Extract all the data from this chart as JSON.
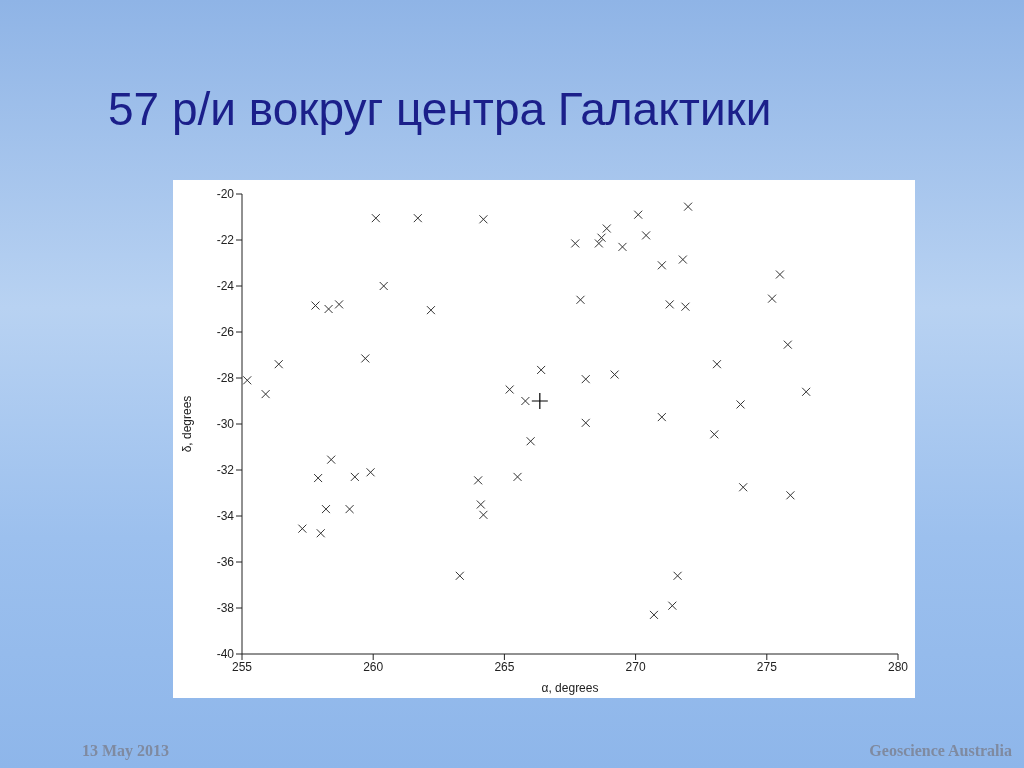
{
  "chart_data": {
    "type": "scatter",
    "title": "57 р/и вокруг центра Галактики",
    "xlabel": "α, degrees",
    "ylabel": "δ, degrees",
    "xlim": [
      255,
      280
    ],
    "xticks": [
      255,
      260,
      265,
      270,
      275,
      280
    ],
    "ylim": [
      -40,
      -20
    ],
    "yticks": [
      -40,
      -38,
      -36,
      -34,
      -32,
      -30,
      -28,
      -26,
      -24,
      -22,
      -20
    ],
    "grid": false,
    "legend": false,
    "annotations": [
      "13 May 2013",
      "Geoscience Australia"
    ],
    "series": [
      {
        "color": "#333333",
        "marker": "cross",
        "x": [
          255.2,
          255.9,
          256.4,
          257.8,
          258.3,
          258.7,
          259.7,
          260.1,
          260.4,
          261.7,
          262.2,
          264.2,
          265.2,
          265.8,
          266.4,
          267.7,
          267.9,
          268.6,
          268.7,
          268.9,
          269.5,
          270.1,
          270.4,
          271.0,
          271.3,
          271.8,
          272.0,
          271.9,
          275.5,
          275.2,
          275.8,
          273.1,
          268.1,
          269.2,
          276.5,
          274.0,
          271.0,
          268.1,
          273.0,
          274.1,
          275.9,
          271.6,
          271.4,
          270.7,
          257.3,
          257.9,
          258.4,
          258.0,
          258.2,
          259.1,
          259.3,
          259.9,
          263.3,
          264.0,
          264.1,
          264.2,
          265.5,
          266.0
        ],
        "values": [
          -28.1,
          -28.7,
          -27.4,
          -24.85,
          -25.0,
          -24.8,
          -27.15,
          -21.05,
          -24.0,
          -21.05,
          -25.05,
          -21.1,
          -28.5,
          -29.0,
          -27.65,
          -22.15,
          -24.6,
          -22.15,
          -21.9,
          -21.5,
          -22.3,
          -20.9,
          -21.8,
          -23.1,
          -24.8,
          -22.85,
          -20.55,
          -24.9,
          -23.5,
          -24.55,
          -26.55,
          -27.4,
          -28.05,
          -27.85,
          -28.6,
          -29.15,
          -29.7,
          -29.95,
          -30.45,
          -32.75,
          -33.1,
          -36.6,
          -37.9,
          -38.3,
          -34.55,
          -32.35,
          -31.55,
          -34.75,
          -33.7,
          -33.7,
          -32.3,
          -32.1,
          -36.6,
          -32.45,
          -33.5,
          -33.95,
          -32.3,
          -30.75
        ]
      },
      {
        "color": "#000000",
        "marker": "plus",
        "x": [
          266.35
        ],
        "values": [
          -29.0
        ]
      }
    ]
  }
}
